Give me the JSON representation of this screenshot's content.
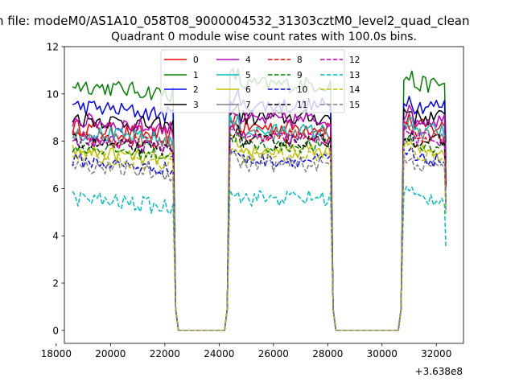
{
  "figure": {
    "suptitle": "n file: modeM0/AS1A10_058T08_9000004532_31303cztM0_level2_quad_clean"
  },
  "chart_data": {
    "type": "line",
    "title": "Quadrant 0 module wise count rates with 100.0s bins.",
    "xlabel": "",
    "ylabel": "",
    "x_offset_label": "+3.638e8",
    "xlim": [
      18300,
      33000
    ],
    "ylim": [
      -0.55,
      12
    ],
    "xticks": [
      18000,
      20000,
      22000,
      24000,
      26000,
      28000,
      30000,
      32000
    ],
    "yticks": [
      0,
      2,
      4,
      6,
      8,
      10,
      12
    ],
    "grid": false,
    "legend_position": "top-center",
    "legend_columns": 4,
    "gaps": [
      [
        22400,
        24300
      ],
      [
        28200,
        30700
      ]
    ],
    "segments": [
      [
        18600,
        22300
      ],
      [
        24400,
        28100
      ],
      [
        30800,
        32300
      ]
    ],
    "bin_seconds": 100,
    "series": [
      {
        "name": "0",
        "color": "#ff0000",
        "dash": "solid",
        "level": 8.6,
        "amplitude": 0.35
      },
      {
        "name": "1",
        "color": "#008000",
        "dash": "solid",
        "level": 10.4,
        "amplitude": 0.35
      },
      {
        "name": "2",
        "color": "#0000ff",
        "dash": "solid",
        "level": 9.5,
        "amplitude": 0.35
      },
      {
        "name": "3",
        "color": "#000000",
        "dash": "solid",
        "level": 9.0,
        "amplitude": 0.35
      },
      {
        "name": "4",
        "color": "#bf00bf",
        "dash": "solid",
        "level": 8.9,
        "amplitude": 0.35
      },
      {
        "name": "5",
        "color": "#00bfbf",
        "dash": "solid",
        "level": 8.4,
        "amplitude": 0.35
      },
      {
        "name": "6",
        "color": "#bfbf00",
        "dash": "solid",
        "level": 7.6,
        "amplitude": 0.3
      },
      {
        "name": "7",
        "color": "#808080",
        "dash": "solid",
        "level": 8.3,
        "amplitude": 0.3
      },
      {
        "name": "8",
        "color": "#ff0000",
        "dash": "dashed",
        "level": 8.2,
        "amplitude": 0.3
      },
      {
        "name": "9",
        "color": "#008000",
        "dash": "dashed",
        "level": 7.8,
        "amplitude": 0.3
      },
      {
        "name": "10",
        "color": "#0000ff",
        "dash": "dashed",
        "level": 7.2,
        "amplitude": 0.3
      },
      {
        "name": "11",
        "color": "#000000",
        "dash": "dashed",
        "level": 8.0,
        "amplitude": 0.3
      },
      {
        "name": "12",
        "color": "#bf00bf",
        "dash": "dashed",
        "level": 8.1,
        "amplitude": 0.3
      },
      {
        "name": "13",
        "color": "#00bfbf",
        "dash": "dashed",
        "level": 5.6,
        "amplitude": 0.35
      },
      {
        "name": "14",
        "color": "#bfbf00",
        "dash": "dashed",
        "level": 7.4,
        "amplitude": 0.3
      },
      {
        "name": "15",
        "color": "#808080",
        "dash": "dashed",
        "level": 7.0,
        "amplitude": 0.3
      }
    ]
  }
}
